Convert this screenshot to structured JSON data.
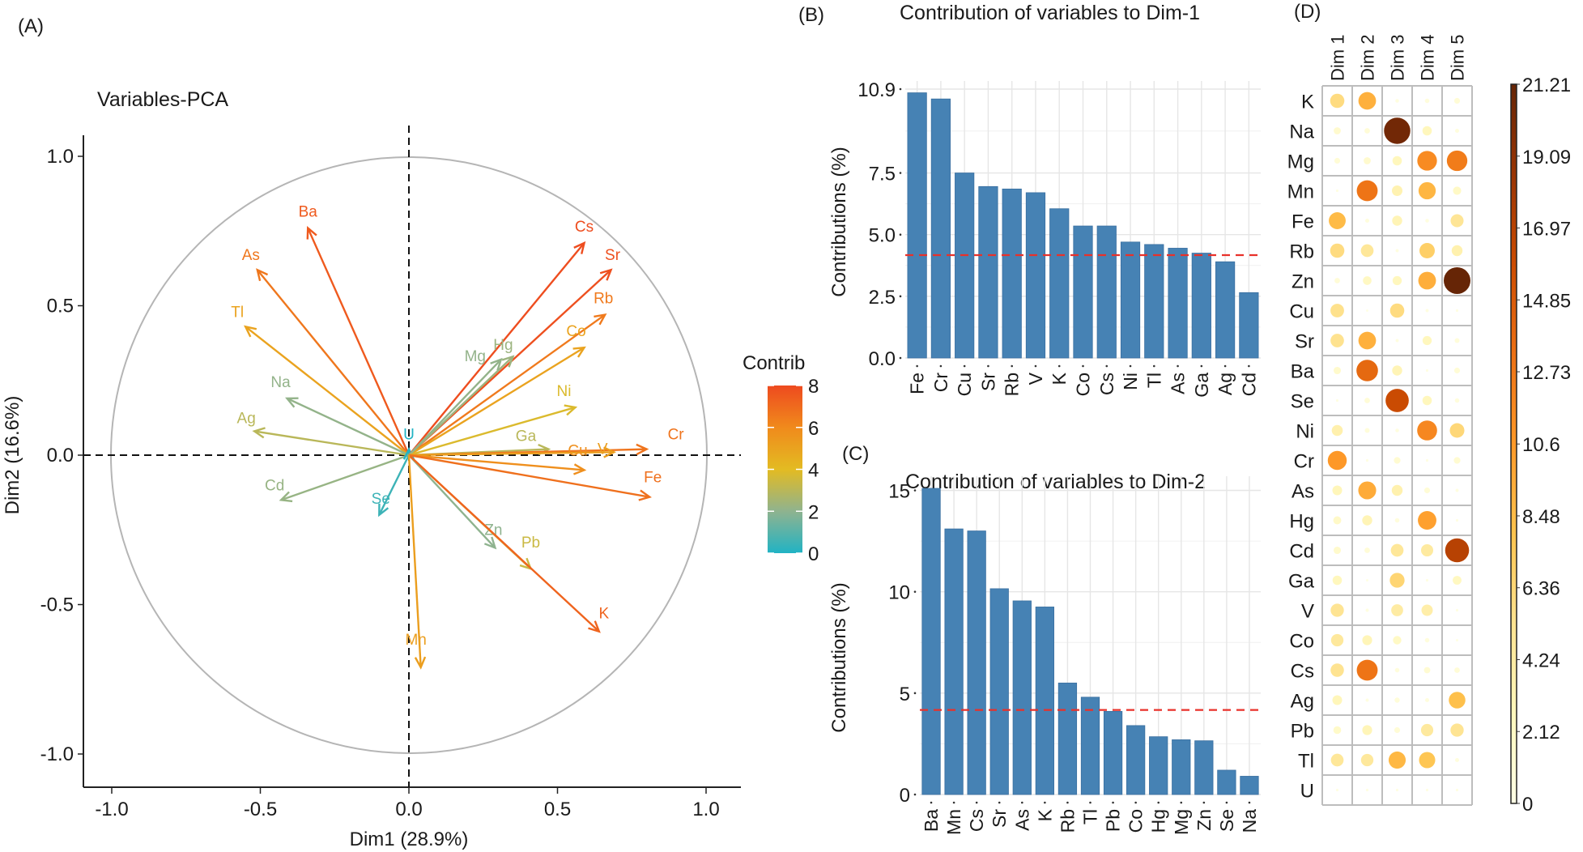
{
  "figure": {
    "panels": [
      "(A)",
      "(B)",
      "(C)",
      "(D)"
    ]
  },
  "chart_data": [
    {
      "panel": "(A)",
      "type": "scatter",
      "subtype": "pca-variable-correlation-circle",
      "title": "Variables-PCA",
      "xlabel": "Dim1 (28.9%)",
      "ylabel": "Dim2 (16.6%)",
      "xlim": [
        -1.1,
        1.1
      ],
      "ylim": [
        -1.1,
        1.1
      ],
      "xticks": [
        "-1.0",
        "-0.5",
        "0.0",
        "0.5",
        "1.0"
      ],
      "xtick_values": [
        -1.0,
        -0.5,
        0.0,
        0.5,
        1.0
      ],
      "yticks": [
        "-1.0",
        "-0.5",
        "0.0",
        "0.5",
        "1.0"
      ],
      "ytick_values": [
        -1.0,
        -0.5,
        0.0,
        0.5,
        1.0
      ],
      "legend": {
        "title": "Contrib",
        "placement": "right",
        "ticks": [
          "0",
          "2",
          "4",
          "6",
          "8"
        ],
        "tick_values": [
          0,
          2,
          4,
          6,
          8
        ],
        "range": [
          0,
          8
        ],
        "colors": [
          "#21b3c4",
          "#8fb38f",
          "#e3bb22",
          "#f08a1c",
          "#ee4a1f"
        ]
      },
      "variables": [
        {
          "name": "Ba",
          "x": -0.34,
          "y": 0.76,
          "contrib": 7.5
        },
        {
          "name": "As",
          "x": -0.51,
          "y": 0.62,
          "contrib": 6.6
        },
        {
          "name": "Tl",
          "x": -0.55,
          "y": 0.43,
          "contrib": 5.0
        },
        {
          "name": "Na",
          "x": -0.41,
          "y": 0.19,
          "contrib": 2.1
        },
        {
          "name": "Ag",
          "x": -0.52,
          "y": 0.08,
          "contrib": 3.0
        },
        {
          "name": "Cd",
          "x": -0.43,
          "y": -0.15,
          "contrib": 2.2
        },
        {
          "name": "Se",
          "x": -0.1,
          "y": -0.2,
          "contrib": 0.5
        },
        {
          "name": "U",
          "x": 0.0,
          "y": 0.02,
          "contrib": 0.0
        },
        {
          "name": "Cs",
          "x": 0.59,
          "y": 0.71,
          "contrib": 7.9
        },
        {
          "name": "Sr",
          "x": 0.68,
          "y": 0.62,
          "contrib": 7.8
        },
        {
          "name": "Rb",
          "x": 0.66,
          "y": 0.47,
          "contrib": 6.5
        },
        {
          "name": "Co",
          "x": 0.59,
          "y": 0.36,
          "contrib": 5.0
        },
        {
          "name": "Hg",
          "x": 0.35,
          "y": 0.33,
          "contrib": 2.3
        },
        {
          "name": "Mg",
          "x": 0.31,
          "y": 0.32,
          "contrib": 2.1
        },
        {
          "name": "Ni",
          "x": 0.56,
          "y": 0.16,
          "contrib": 3.8
        },
        {
          "name": "Ga",
          "x": 0.47,
          "y": 0.02,
          "contrib": 3.0
        },
        {
          "name": "Cr",
          "x": 0.8,
          "y": 0.02,
          "contrib": 6.7
        },
        {
          "name": "V",
          "x": 0.69,
          "y": 0.01,
          "contrib": 5.2
        },
        {
          "name": "Cu",
          "x": 0.59,
          "y": -0.05,
          "contrib": 5.8
        },
        {
          "name": "Fe",
          "x": 0.81,
          "y": -0.14,
          "contrib": 6.8
        },
        {
          "name": "Zn",
          "x": 0.29,
          "y": -0.31,
          "contrib": 2.0
        },
        {
          "name": "Pb",
          "x": 0.41,
          "y": -0.38,
          "contrib": 3.4
        },
        {
          "name": "K",
          "x": 0.64,
          "y": -0.59,
          "contrib": 7.2
        },
        {
          "name": "Mn",
          "x": 0.04,
          "y": -0.71,
          "contrib": 5.2
        }
      ],
      "reference_lines": {
        "x": 0,
        "y": 0,
        "style": "dashed"
      },
      "unit_circle": true,
      "grid": false
    },
    {
      "panel": "(B)",
      "type": "bar",
      "title": "Contribution of variables to Dim-1",
      "xlabel": "",
      "ylabel": "Contributions (%)",
      "ylim": [
        0,
        10.9
      ],
      "yticks": [
        "0.0",
        "2.5",
        "5.0",
        "7.5",
        "10.9"
      ],
      "ytick_values": [
        0.0,
        2.5,
        5.0,
        7.5,
        10.9
      ],
      "categories": [
        "Fe",
        "Cr",
        "Cu",
        "Sr",
        "Rb",
        "V",
        "K",
        "Co",
        "Cs",
        "Ni",
        "Tl",
        "As",
        "Ga",
        "Ag",
        "Cd"
      ],
      "values": [
        10.75,
        10.5,
        7.5,
        6.95,
        6.85,
        6.7,
        6.05,
        5.35,
        5.35,
        4.7,
        4.6,
        4.45,
        4.25,
        3.9,
        2.65
      ],
      "reference_line": {
        "value": 4.17,
        "color": "#e8312a",
        "style": "dashed"
      },
      "bar_color": "#4682b4",
      "grid": true
    },
    {
      "panel": "(C)",
      "type": "bar",
      "title": "Contribution of variables to Dim-2",
      "xlabel": "",
      "ylabel": "Contributions (%)",
      "ylim": [
        0,
        15.3
      ],
      "yticks": [
        "0",
        "5",
        "10",
        "15"
      ],
      "ytick_values": [
        0,
        5,
        10,
        15
      ],
      "categories": [
        "Ba",
        "Mn",
        "Cs",
        "Sr",
        "As",
        "K",
        "Rb",
        "Tl",
        "Pb",
        "Co",
        "Hg",
        "Mg",
        "Zn",
        "Se",
        "Na"
      ],
      "values": [
        15.1,
        13.1,
        13.0,
        10.15,
        9.55,
        9.25,
        5.5,
        4.8,
        4.1,
        3.4,
        2.85,
        2.7,
        2.65,
        1.2,
        0.9
      ],
      "reference_line": {
        "value": 4.17,
        "color": "#e8312a",
        "style": "dashed"
      },
      "bar_color": "#4682b4",
      "grid": true
    },
    {
      "panel": "(D)",
      "type": "heatmap",
      "subtype": "corrplot-circles",
      "title": "",
      "columns": [
        "Dim 1",
        "Dim 2",
        "Dim 3",
        "Dim 4",
        "Dim 5"
      ],
      "rows": [
        "K",
        "Na",
        "Mg",
        "Mn",
        "Fe",
        "Rb",
        "Zn",
        "Cu",
        "Sr",
        "Ba",
        "Se",
        "Ni",
        "Cr",
        "As",
        "Hg",
        "Cd",
        "Ga",
        "V",
        "Co",
        "Cs",
        "Ag",
        "Pb",
        "Tl",
        "U"
      ],
      "values": [
        [
          6.0,
          9.2,
          0.4,
          0.6,
          1.0
        ],
        [
          1.5,
          0.9,
          20.6,
          2.6,
          0.5
        ],
        [
          1.0,
          1.5,
          2.6,
          11.5,
          12.5
        ],
        [
          0.2,
          13.0,
          3.3,
          8.8,
          2.0
        ],
        [
          8.5,
          0.5,
          3.0,
          0.4,
          5.0
        ],
        [
          6.0,
          4.8,
          0.3,
          7.0,
          3.5
        ],
        [
          0.9,
          2.2,
          2.5,
          9.3,
          21.2
        ],
        [
          5.5,
          0.0,
          6.0,
          0.3,
          0.2
        ],
        [
          5.4,
          9.2,
          0.3,
          2.5,
          0.7
        ],
        [
          1.6,
          13.8,
          3.0,
          0.2,
          1.0
        ],
        [
          0.2,
          0.9,
          16.0,
          2.6,
          0.6
        ],
        [
          3.6,
          0.7,
          0.4,
          11.8,
          6.3
        ],
        [
          10.7,
          0.2,
          1.3,
          0.2,
          1.3
        ],
        [
          2.8,
          9.5,
          3.5,
          1.0,
          0.3
        ],
        [
          1.9,
          3.0,
          0.6,
          10.2,
          0.2
        ],
        [
          1.6,
          0.9,
          4.8,
          4.4,
          17.0
        ],
        [
          2.6,
          0.1,
          6.5,
          0.2,
          2.3
        ],
        [
          5.2,
          0.3,
          4.2,
          3.8,
          0.2
        ],
        [
          4.6,
          2.9,
          2.1,
          0.6,
          0.1
        ],
        [
          5.3,
          13.0,
          0.6,
          1.2,
          0.9
        ],
        [
          2.8,
          0.3,
          0.8,
          0.5,
          8.2
        ],
        [
          1.8,
          2.9,
          1.0,
          4.5,
          5.2
        ],
        [
          4.8,
          4.6,
          8.7,
          7.8,
          0.5
        ],
        [
          0.2,
          0.2,
          0.2,
          0.2,
          0.2
        ]
      ],
      "legend": {
        "placement": "right",
        "ticks": [
          "0",
          "2.12",
          "4.24",
          "6.36",
          "8.48",
          "10.6",
          "12.73",
          "14.85",
          "16.97",
          "19.09",
          "21.21"
        ],
        "tick_values": [
          0,
          2.12,
          4.24,
          6.36,
          8.48,
          10.6,
          12.73,
          14.85,
          16.97,
          19.09,
          21.21
        ],
        "range": [
          0,
          21.21
        ],
        "colors": [
          "#ffffe5",
          "#fff7bc",
          "#fee391",
          "#fec44f",
          "#fe9929",
          "#ec7014",
          "#cc4c02",
          "#993404",
          "#662506"
        ]
      }
    }
  ]
}
